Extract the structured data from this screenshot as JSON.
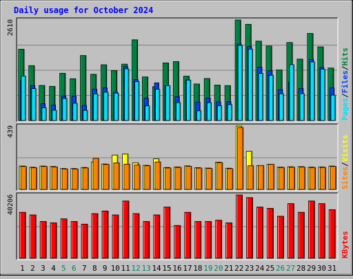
{
  "chart_data": {
    "type": "bar",
    "title": "Daily usage for October 2024",
    "categories": [
      "1",
      "2",
      "3",
      "4",
      "5",
      "6",
      "7",
      "8",
      "9",
      "10",
      "11",
      "12",
      "13",
      "14",
      "15",
      "16",
      "17",
      "18",
      "19",
      "20",
      "21",
      "22",
      "23",
      "24",
      "25",
      "26",
      "27",
      "28",
      "29",
      "30",
      "31"
    ],
    "weekend_categories": [
      "5",
      "6",
      "12",
      "13",
      "19",
      "20",
      "26",
      "27"
    ],
    "panels": [
      {
        "id": "hits",
        "ymax_label": "2610",
        "ymax": 2610,
        "legend": [
          "Hits",
          "Files",
          "Pages"
        ],
        "series": [
          {
            "name": "Hits",
            "color": "#008040",
            "values": [
              1850,
              1425,
              911,
              888,
              1227,
              1085,
              1687,
              1201,
              1448,
              1298,
              1464,
              2095,
              1132,
              879,
              1496,
              1530,
              1151,
              949,
              1091,
              921,
              907,
              2610,
              2497,
              2061,
              1934,
              1314,
              2025,
              1594,
              2260,
              1913,
              1363
            ]
          },
          {
            "name": "Files",
            "color": "#0040ff",
            "values": [
              1033,
              901,
              437,
              402,
              637,
              630,
              391,
              814,
              846,
              740,
              1396,
              1062,
              579,
              979,
              896,
              619,
              1051,
              478,
              582,
              486,
              488,
              1983,
              1919,
              1385,
              1294,
              800,
              997,
              833,
              1587,
              1375,
              847
            ]
          },
          {
            "name": "Pages",
            "color": "#00e0ff",
            "values": [
              1156,
              829,
              331,
              267,
              573,
              448,
              265,
              692,
              735,
              711,
              1340,
              1012,
              381,
              813,
              907,
              465,
              1050,
              253,
              464,
              385,
              413,
              1949,
              1853,
              1223,
              1174,
              694,
              1450,
              698,
              1521,
              1333,
              660
            ]
          }
        ]
      },
      {
        "id": "visits",
        "ymax_label": "439",
        "ymax": 439,
        "legend": [
          "Visits",
          "Sites"
        ],
        "series": [
          {
            "name": "Visits",
            "color": "#ffff00",
            "values": [
              162,
              154,
              162,
              159,
              145,
              145,
              152,
              190,
              176,
              238,
              245,
              185,
              167,
              212,
              152,
              156,
              163,
              151,
              148,
              189,
              147,
              439,
              264,
              164,
              174,
              155,
              157,
              158,
              155,
              156,
              162
            ]
          },
          {
            "name": "Sites",
            "color": "#ff8000",
            "values": [
              159,
              151,
              159,
              156,
              142,
              142,
              149,
              215,
              173,
              184,
              175,
              169,
              164,
              190,
              149,
              153,
              160,
              148,
              145,
              186,
              144,
              429,
              164,
              166,
              174,
              152,
              154,
              155,
              152,
              153,
              159
            ]
          }
        ]
      },
      {
        "id": "kbytes",
        "ymax_label": "40206",
        "ymax": 40206,
        "legend": [
          "KBytes"
        ],
        "series": [
          {
            "name": "KBytes",
            "color": "#ff0000",
            "values": [
              29210,
              27543,
              23377,
              22543,
              25044,
              23377,
              21709,
              28377,
              30044,
              27543,
              36378,
              28377,
              23377,
              27543,
              32545,
              20876,
              29210,
              23377,
              23377,
              24210,
              22543,
              40206,
              38539,
              32545,
              31712,
              26710,
              34711,
              29210,
              36378,
              34711,
              30878
            ]
          }
        ]
      }
    ]
  }
}
